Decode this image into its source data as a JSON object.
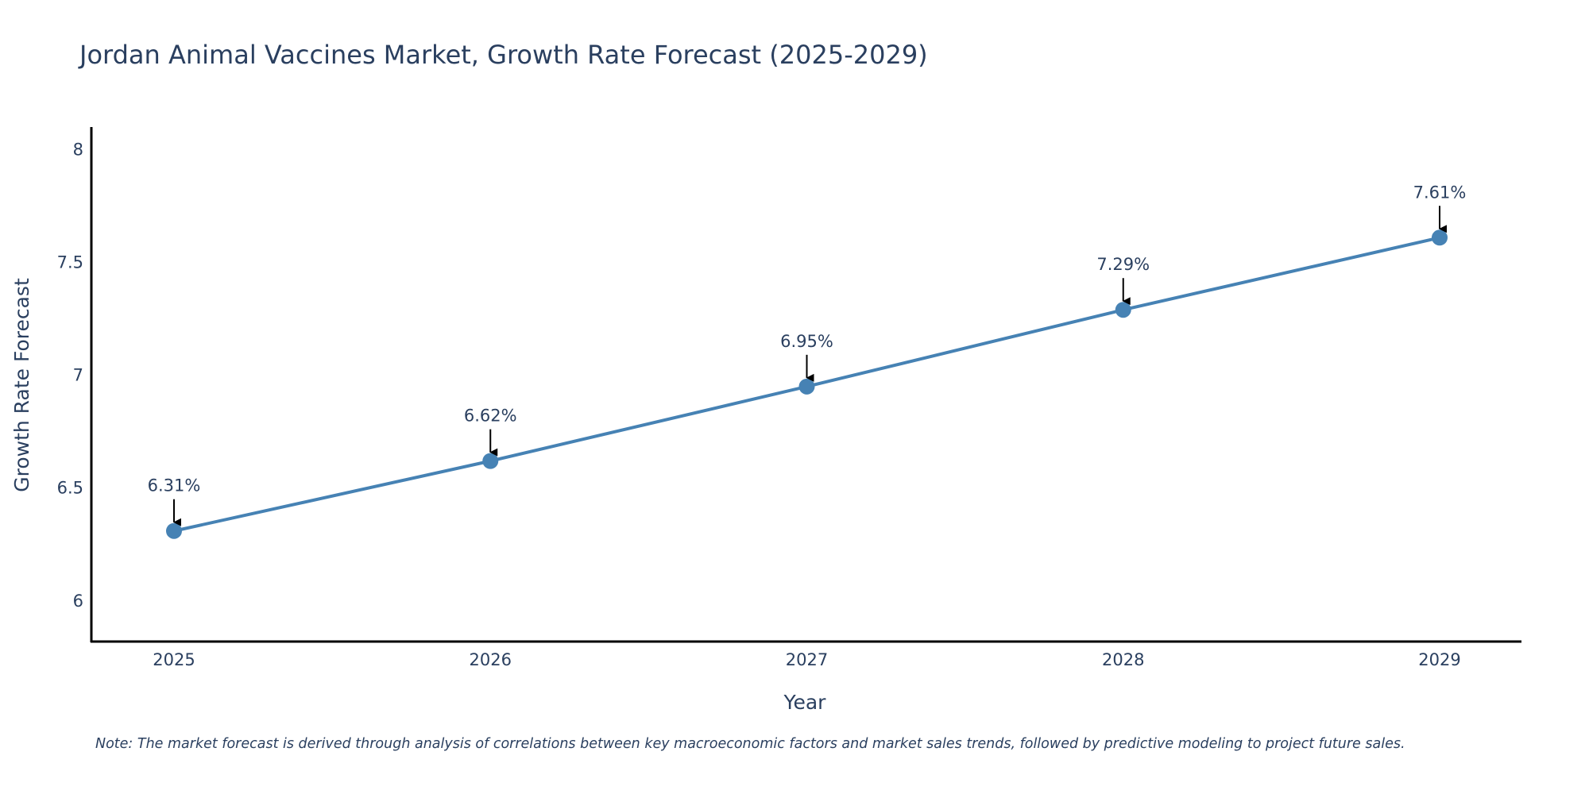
{
  "colors": {
    "line": "#4682B4",
    "axis": "#000000",
    "text": "#2a3f5f",
    "arrow": "#000000"
  },
  "chart_data": {
    "type": "line",
    "title": "Jordan Animal Vaccines Market, Growth Rate Forecast (2025-2029)",
    "xlabel": "Year",
    "ylabel": "Growth Rate Forecast",
    "categories": [
      "2025",
      "2026",
      "2027",
      "2028",
      "2029"
    ],
    "series": [
      {
        "name": "Growth Rate Forecast",
        "values": [
          6.31,
          6.62,
          6.95,
          7.29,
          7.61
        ]
      }
    ],
    "data_labels": [
      "6.31%",
      "6.62%",
      "6.95%",
      "7.29%",
      "7.61%"
    ],
    "ylim": [
      5.82,
      8.1
    ],
    "yticks": [
      6,
      6.5,
      7,
      7.5,
      8
    ],
    "ytick_labels": [
      "6",
      "6.5",
      "7",
      "7.5",
      "8"
    ],
    "grid": false,
    "legend": "none",
    "note": "Note: The market forecast is derived through analysis of correlations between key macroeconomic factors and market sales trends, followed by predictive modeling to project future sales."
  }
}
